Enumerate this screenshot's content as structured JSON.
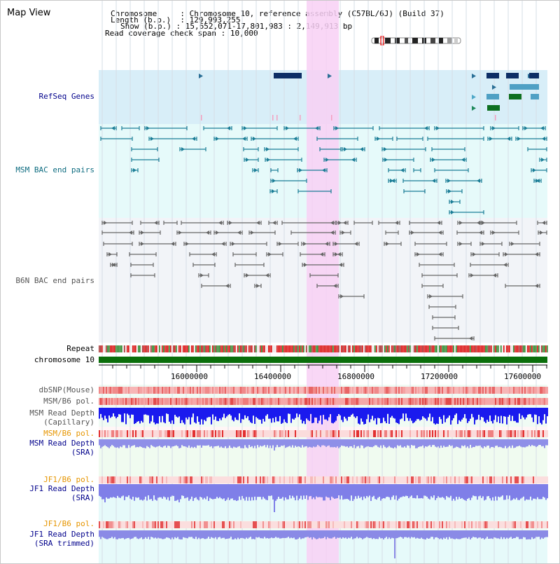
{
  "title": "Map View",
  "info": {
    "chromosome_label": "Chromosome",
    "chromosome_value": "Chromosome 10, reference assembly (C57BL/6J) (Build 37)",
    "length_label": "Length (b.p.)",
    "length_value": "129,993,255",
    "show_label": "Show (b.p.)",
    "show_value": "15,652,071-17,801,983 : 2,149,913 bp",
    "coverage_label": "Read coverage check span",
    "coverage_value": "10,000"
  },
  "tracks": {
    "refseq": "RefSeq Genes",
    "msm_bac": "MSM BAC end pairs",
    "b6n_bac": "B6N BAC end pairs",
    "repeat": "Repeat",
    "chromosome": "chromosome 10",
    "dbsnp": "dbSNP(Mouse)",
    "msm_b6_pol_1": "MSM/B6 pol.",
    "msm_depth_cap_1": "MSM Read Depth",
    "msm_depth_cap_2": "(Capillary)",
    "msm_b6_pol_2": "MSM/B6 pol.",
    "msm_depth_sra_1": "MSM Read Depth",
    "msm_depth_sra_2": "(SRA)",
    "jf1_b6_pol_1": "JF1/B6 pol.",
    "jf1_depth_sra_1": "JF1 Read Depth",
    "jf1_depth_sra_2": "(SRA)",
    "jf1_b6_pol_2": "JF1/B6 pol.",
    "jf1_depth_trim_1": "JF1 Read Depth",
    "jf1_depth_trim_2": "(SRA trimmed)"
  },
  "ruler": {
    "ticks": [
      "16000000",
      "16400000",
      "16800000",
      "17200000",
      "17600000"
    ]
  },
  "colors": {
    "refseq_bg": "#d8eef8",
    "msm_bg": "#e6fafa",
    "b6n_bg": "#f2f4f8",
    "highlight": "#f8d0f4",
    "repeat_red": "#dd1111",
    "repeat_green": "#2e8b2e",
    "chrom_green": "#0a6e0a",
    "msm_depth_blue": "#1a1aee",
    "sra_depth_blue": "#7f7fe8",
    "pol_red": "#f08080"
  }
}
